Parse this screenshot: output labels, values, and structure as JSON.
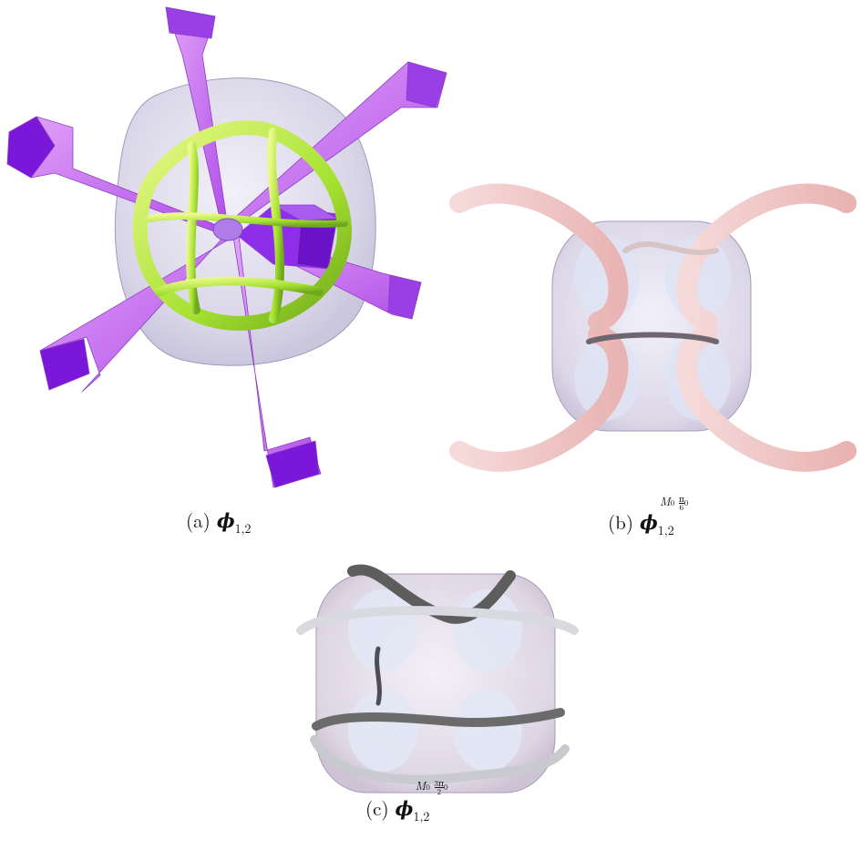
{
  "captions": {
    "a": {
      "label": "(a)",
      "symbol": "ϕ",
      "subscript": "1,2",
      "superscript": ""
    },
    "b": {
      "label": "(b)",
      "symbol": "ϕ",
      "subscript": "1,2",
      "superscript_main": "M",
      "superscript_sub": "0",
      "superscript_frac_num": "π",
      "superscript_frac_den": "6",
      "superscript_tail": "0"
    },
    "c": {
      "label": "(c)",
      "symbol": "ϕ",
      "subscript": "1,2",
      "superscript_main": "M",
      "superscript_sub": "0",
      "superscript_frac_num": "3π",
      "superscript_frac_den": "2",
      "superscript_tail": "0"
    }
  },
  "colors": {
    "spike": "#c870f0",
    "spike_dark": "#7a17d9",
    "ring": "#a8e838",
    "shell": "#c9c3e0",
    "ribbon_pink": "#f3c9c9",
    "ribbon_grey": "#8a8a8a"
  }
}
